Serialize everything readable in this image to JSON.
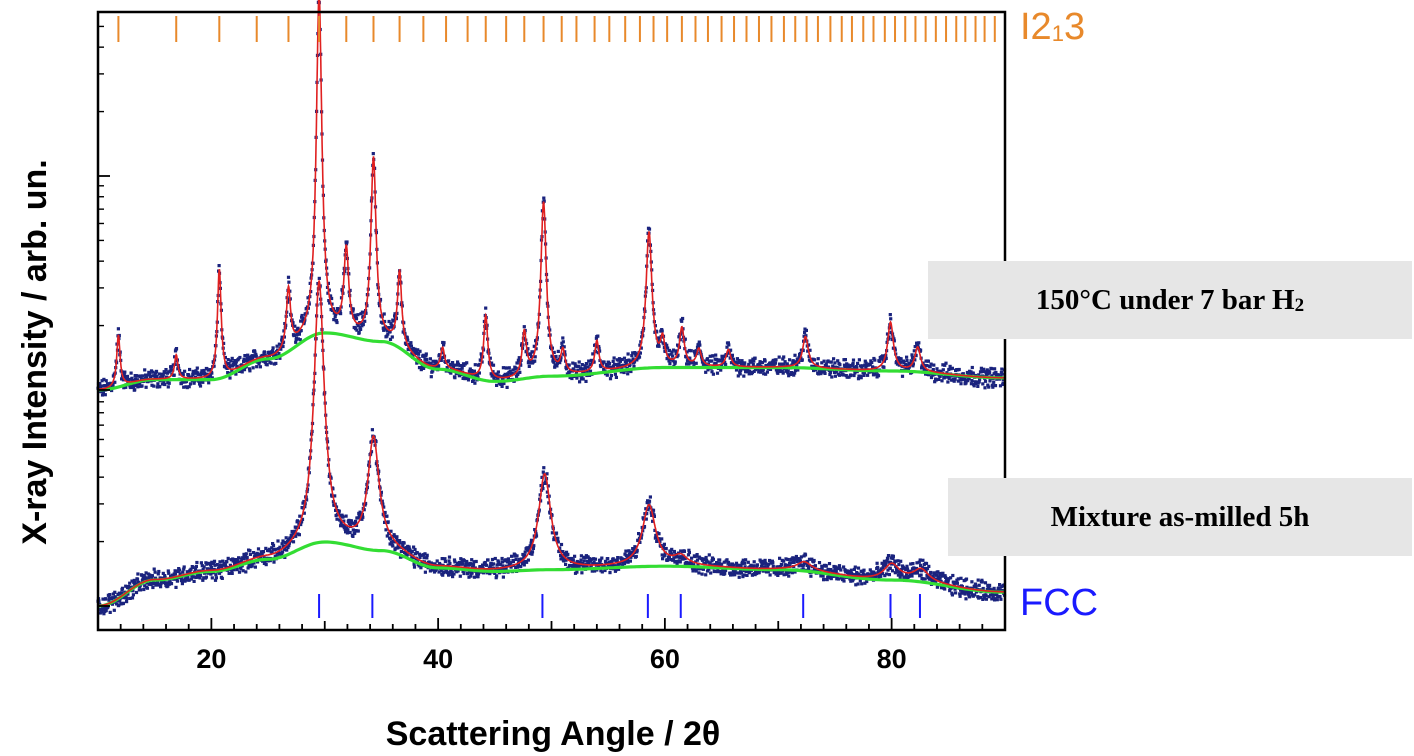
{
  "chart_data": {
    "type": "line",
    "xlabel": "Scattering Angle / 2θ",
    "ylabel": "X-ray Intensity / arb. un.",
    "xlim": [
      10,
      90
    ],
    "x_ticks": [
      "20",
      "40",
      "60",
      "80"
    ],
    "x_tick_values": [
      20,
      40,
      60,
      80
    ],
    "grid": false,
    "series": [
      {
        "label": "150°C under 7 bar H",
        "label_sub": "2",
        "baseline": 1.0,
        "background": [
          [
            10,
            1.0
          ],
          [
            15,
            1.06
          ],
          [
            20,
            1.06
          ],
          [
            25,
            1.18
          ],
          [
            30,
            1.33
          ],
          [
            35,
            1.28
          ],
          [
            40,
            1.12
          ],
          [
            45,
            1.05
          ],
          [
            50,
            1.08
          ],
          [
            60,
            1.13
          ],
          [
            70,
            1.13
          ],
          [
            80,
            1.11
          ],
          [
            90,
            1.07
          ]
        ],
        "peaks": [
          {
            "pos": 11.8,
            "height": 0.3,
            "width": 0.18
          },
          {
            "pos": 16.9,
            "height": 0.14,
            "width": 0.18
          },
          {
            "pos": 20.7,
            "height": 0.63,
            "width": 0.2
          },
          {
            "pos": 26.8,
            "height": 0.35,
            "width": 0.22
          },
          {
            "pos": 29.5,
            "height": 1.95,
            "width": 0.3
          },
          {
            "pos": 31.9,
            "height": 0.48,
            "width": 0.25
          },
          {
            "pos": 34.3,
            "height": 1.05,
            "width": 0.28
          },
          {
            "pos": 36.6,
            "height": 0.43,
            "width": 0.22
          },
          {
            "pos": 40.4,
            "height": 0.12,
            "width": 0.2
          },
          {
            "pos": 44.2,
            "height": 0.37,
            "width": 0.22
          },
          {
            "pos": 47.6,
            "height": 0.25,
            "width": 0.22
          },
          {
            "pos": 49.3,
            "height": 1.0,
            "width": 0.3
          },
          {
            "pos": 51.0,
            "height": 0.13,
            "width": 0.22
          },
          {
            "pos": 54.0,
            "height": 0.18,
            "width": 0.22
          },
          {
            "pos": 58.6,
            "height": 0.78,
            "width": 0.32
          },
          {
            "pos": 59.8,
            "height": 0.14,
            "width": 0.22
          },
          {
            "pos": 61.5,
            "height": 0.22,
            "width": 0.25
          },
          {
            "pos": 63.0,
            "height": 0.1,
            "width": 0.25
          },
          {
            "pos": 65.6,
            "height": 0.1,
            "width": 0.25
          },
          {
            "pos": 72.4,
            "height": 0.18,
            "width": 0.3
          },
          {
            "pos": 79.9,
            "height": 0.28,
            "width": 0.3
          },
          {
            "pos": 82.3,
            "height": 0.14,
            "width": 0.3
          }
        ]
      },
      {
        "label": "Mixture as-milled 5h",
        "baseline": 0.0,
        "background": [
          [
            10,
            0.0
          ],
          [
            15,
            0.15
          ],
          [
            20,
            0.2
          ],
          [
            25,
            0.27
          ],
          [
            30,
            0.37
          ],
          [
            35,
            0.32
          ],
          [
            40,
            0.22
          ],
          [
            45,
            0.2
          ],
          [
            50,
            0.21
          ],
          [
            60,
            0.23
          ],
          [
            70,
            0.21
          ],
          [
            80,
            0.15
          ],
          [
            90,
            0.08
          ]
        ],
        "peaks": [
          {
            "pos": 29.5,
            "height": 1.5,
            "width": 0.55
          },
          {
            "pos": 34.3,
            "height": 0.64,
            "width": 0.6
          },
          {
            "pos": 49.4,
            "height": 0.55,
            "width": 0.65
          },
          {
            "pos": 58.6,
            "height": 0.35,
            "width": 0.7
          },
          {
            "pos": 61.4,
            "height": 0.05,
            "width": 0.7
          },
          {
            "pos": 72.3,
            "height": 0.05,
            "width": 0.8
          },
          {
            "pos": 80.0,
            "height": 0.09,
            "width": 0.8
          },
          {
            "pos": 82.6,
            "height": 0.07,
            "width": 0.8
          }
        ]
      }
    ],
    "reflection_markers": [
      {
        "phase": "I2",
        "phase_sub": "1",
        "phase_suffix": "3",
        "color": "#e8892b",
        "positions": [
          11.8,
          16.9,
          20.7,
          24.0,
          26.8,
          29.5,
          31.9,
          34.3,
          36.6,
          38.7,
          40.7,
          42.6,
          44.2,
          46.0,
          47.6,
          49.3,
          50.9,
          52.2,
          53.8,
          55.1,
          56.5,
          57.8,
          59.0,
          60.2,
          61.5,
          62.7,
          63.8,
          65.0,
          66.1,
          67.2,
          68.3,
          69.4,
          70.5,
          71.5,
          72.5,
          73.5,
          74.6,
          75.6,
          76.5,
          77.5,
          78.4,
          79.4,
          80.3,
          81.2,
          82.1,
          83.0,
          83.9,
          84.8,
          85.7,
          86.5,
          87.4,
          88.2,
          89.1
        ]
      },
      {
        "phase": "FCC",
        "color": "#1a1aff",
        "positions": [
          29.5,
          34.2,
          49.2,
          58.5,
          61.4,
          72.2,
          79.9,
          82.5
        ]
      }
    ],
    "colors": {
      "observed": "#1a237e",
      "calculated": "#e02020",
      "background": "#33dd33"
    }
  }
}
